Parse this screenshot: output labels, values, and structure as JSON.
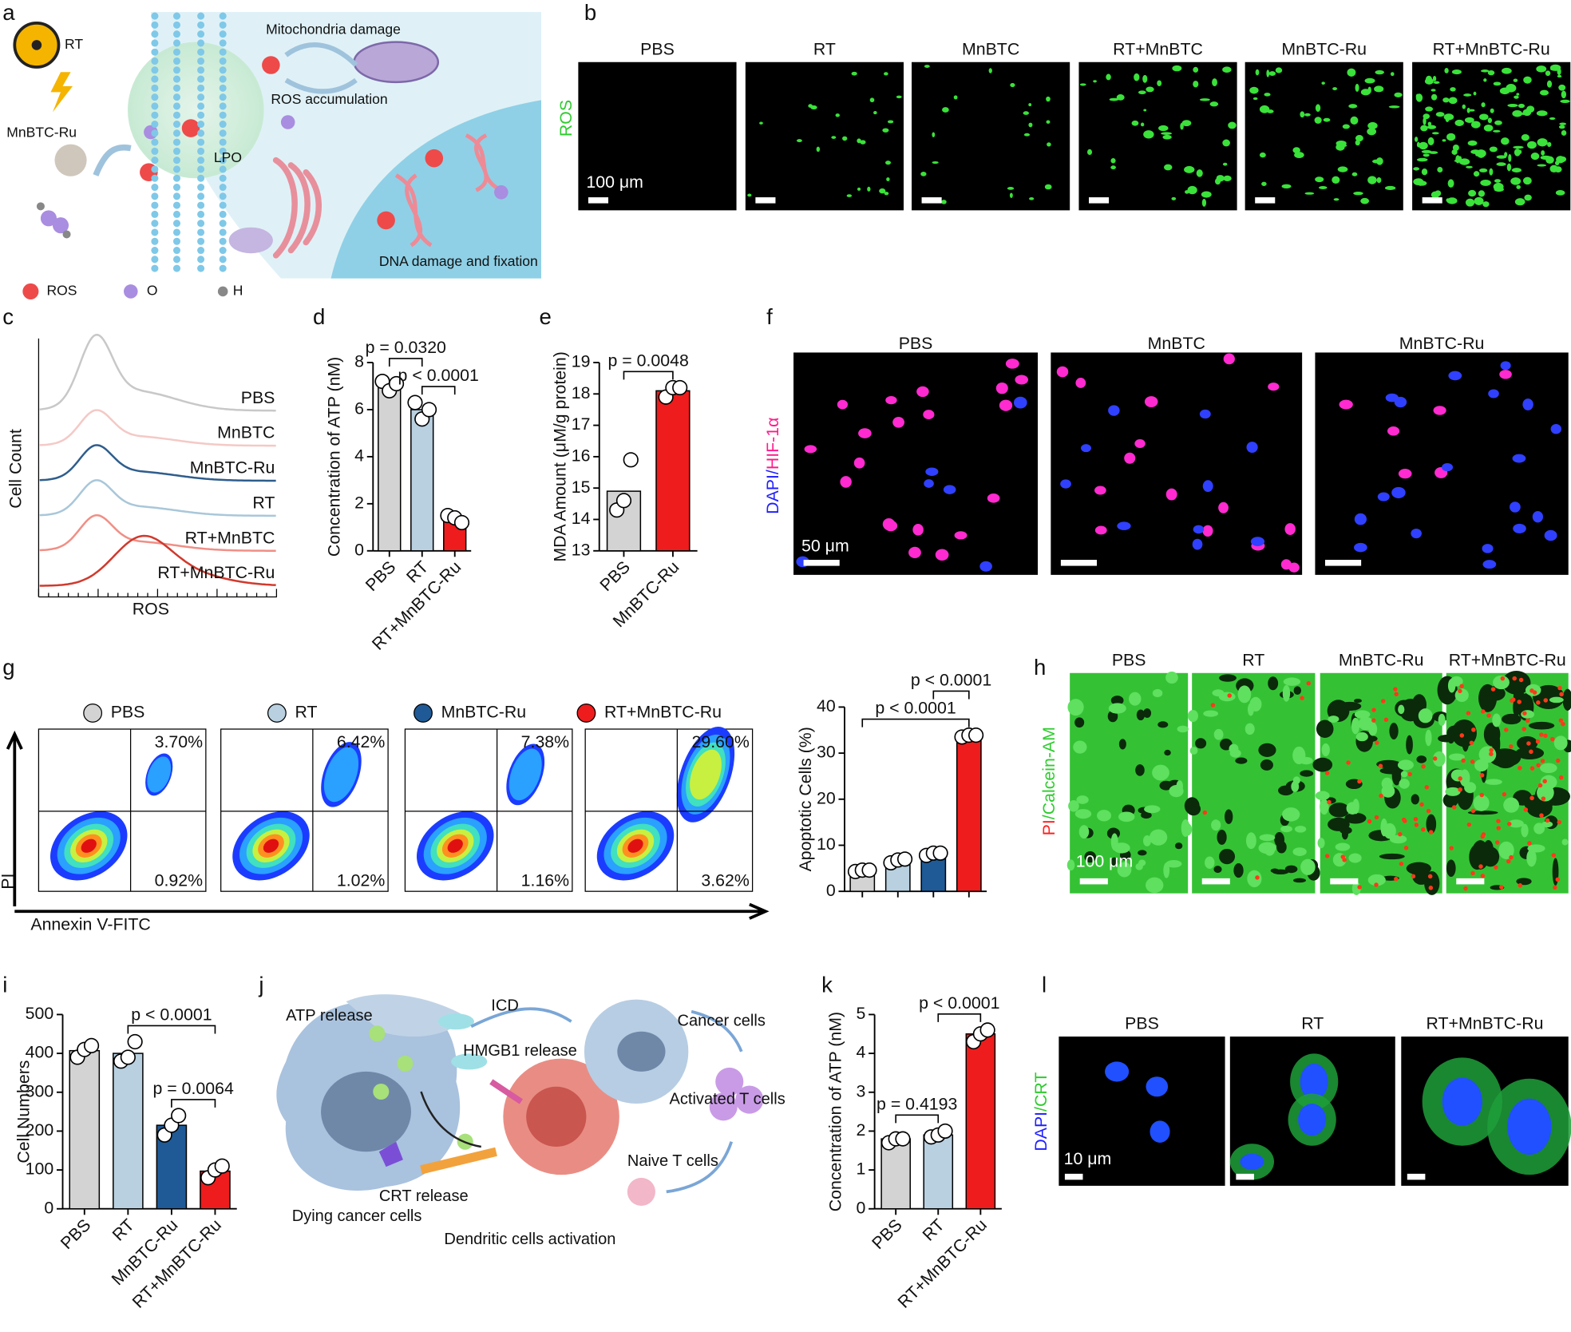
{
  "panel_labels": [
    "a",
    "b",
    "c",
    "d",
    "e",
    "f",
    "g",
    "h",
    "i",
    "j",
    "k",
    "l"
  ],
  "panel_a": {
    "labels": [
      "RT",
      "MnBTC-Ru",
      "Mitochondria damage",
      "ROS accumulation",
      "LPO",
      "DNA damage and fixation"
    ],
    "legend": [
      "ROS",
      "O",
      "H"
    ]
  },
  "panel_b": {
    "stain": "ROS",
    "groups": [
      "PBS",
      "RT",
      "MnBTC",
      "RT+MnBTC",
      "MnBTC-Ru",
      "RT+MnBTC-Ru"
    ],
    "scale_bar": "100 μm"
  },
  "panel_c": {
    "y_label": "Cell Count",
    "x_label": "ROS",
    "traces": [
      {
        "name": "PBS",
        "color": "#c8c8c8"
      },
      {
        "name": "MnBTC",
        "color": "#f4c9c6"
      },
      {
        "name": "MnBTC-Ru",
        "color": "#2f5d8c"
      },
      {
        "name": "RT",
        "color": "#a9c7d9"
      },
      {
        "name": "RT+MnBTC",
        "color": "#f08f86"
      },
      {
        "name": "RT+MnBTC-Ru",
        "color": "#d03a2e"
      }
    ]
  },
  "panel_f": {
    "stain_parts": [
      "DAPI",
      "/",
      "HIF-1α"
    ],
    "groups": [
      "PBS",
      "MnBTC",
      "MnBTC-Ru"
    ],
    "scale_bar": "50 μm"
  },
  "panel_g": {
    "groups": [
      {
        "name": "PBS",
        "color": "#d3d3d3"
      },
      {
        "name": "RT",
        "color": "#b8d0e0"
      },
      {
        "name": "MnBTC-Ru",
        "color": "#1f5a96"
      },
      {
        "name": "RT+MnBTC-Ru",
        "color": "#ee1c1c"
      }
    ],
    "y_label": "PI",
    "x_label": "Annexin V-FITC",
    "quadrants": [
      [
        "3.70%",
        "0.92%"
      ],
      [
        "6.42%",
        "1.02%"
      ],
      [
        "7.38%",
        "1.16%"
      ],
      [
        "29.60%",
        "3.62%"
      ]
    ]
  },
  "panel_h": {
    "stain_parts": [
      "PI",
      "/",
      "Calcein-AM"
    ],
    "groups": [
      "PBS",
      "RT",
      "MnBTC-Ru",
      "RT+MnBTC-Ru"
    ],
    "scale_bar": "100 μm"
  },
  "panel_j": {
    "labels": [
      "ATP release",
      "ICD",
      "Cancer cells",
      "HMGB1 release",
      "Activated T cells",
      "Naive T cells",
      "CRT release",
      "Dying cancer cells",
      "Dendritic cells activation"
    ]
  },
  "panel_l": {
    "stain_parts": [
      "DAPI",
      "/",
      "CRT"
    ],
    "groups": [
      "PBS",
      "RT",
      "RT+MnBTC-Ru"
    ],
    "scale_bar": "10 μm"
  },
  "chart_data": [
    {
      "type": "bar",
      "y_label": "Concentration of ATP (nM)",
      "categories": [
        "PBS",
        "RT",
        "RT+MnBTC-Ru"
      ],
      "values": [
        7.0,
        6.0,
        1.4
      ],
      "colors": [
        "#d3d3d3",
        "#b8d0e0",
        "#ee1c1c"
      ],
      "points": [
        [
          7.2,
          6.8,
          7.1
        ],
        [
          6.3,
          5.6,
          6.0
        ],
        [
          1.5,
          1.4,
          1.2
        ]
      ],
      "ylim": [
        0,
        8
      ],
      "yticks": [
        0,
        2,
        4,
        6,
        8
      ],
      "comparisons": [
        {
          "between": [
            0,
            1
          ],
          "label": "p = 0.0320"
        },
        {
          "between": [
            1,
            2
          ],
          "label": "p < 0.0001"
        }
      ]
    },
    {
      "type": "bar",
      "y_label": "MDA Amount (μM/g protein)",
      "categories": [
        "PBS",
        "MnBTC-Ru"
      ],
      "values": [
        14.9,
        18.1
      ],
      "colors": [
        "#d3d3d3",
        "#ee1c1c"
      ],
      "points": [
        [
          14.3,
          14.6,
          15.9
        ],
        [
          17.9,
          18.2,
          18.2
        ]
      ],
      "ylim": [
        13,
        19
      ],
      "yticks": [
        13,
        14,
        15,
        16,
        17,
        18,
        19
      ],
      "comparisons": [
        {
          "between": [
            0,
            1
          ],
          "label": "p = 0.0048"
        }
      ]
    },
    {
      "type": "bar",
      "y_label": "Apoptotic Cells (%)",
      "categories": [
        null,
        null,
        null,
        null
      ],
      "values": [
        4.5,
        6.7,
        8.1,
        33.8
      ],
      "colors": [
        "#d3d3d3",
        "#b8d0e0",
        "#1f5a96",
        "#ee1c1c"
      ],
      "points": [
        [
          4.3,
          4.6,
          4.6
        ],
        [
          6.2,
          6.8,
          7.0
        ],
        [
          7.8,
          8.3,
          8.3
        ],
        [
          33.5,
          33.9,
          33.9
        ]
      ],
      "ylim": [
        0,
        40
      ],
      "yticks": [
        0,
        10,
        20,
        30,
        40
      ],
      "comparisons": [
        {
          "between": [
            0,
            3
          ],
          "label": "p < 0.0001"
        },
        {
          "between": [
            2,
            3
          ],
          "label": "p < 0.0001"
        }
      ]
    },
    {
      "type": "bar",
      "y_label": "Cell Numbers",
      "categories": [
        "PBS",
        "RT",
        "MnBTC-Ru",
        "RT+MnBTC-Ru"
      ],
      "values": [
        407,
        400,
        215,
        97
      ],
      "colors": [
        "#d3d3d3",
        "#b8d0e0",
        "#1f5a96",
        "#ee1c1c"
      ],
      "points": [
        [
          390,
          410,
          420
        ],
        [
          380,
          390,
          430
        ],
        [
          190,
          215,
          240
        ],
        [
          80,
          100,
          110
        ]
      ],
      "ylim": [
        0,
        500
      ],
      "yticks": [
        0,
        100,
        200,
        300,
        400,
        500
      ],
      "comparisons": [
        {
          "between": [
            1,
            3
          ],
          "label": "p < 0.0001"
        },
        {
          "between": [
            2,
            3
          ],
          "label": "p = 0.0064"
        }
      ]
    },
    {
      "type": "bar",
      "y_label": "Concentration of ATP (nM)",
      "categories": [
        "PBS",
        "RT",
        "RT+MnBTC-Ru"
      ],
      "values": [
        1.8,
        1.9,
        4.5
      ],
      "colors": [
        "#d3d3d3",
        "#b8d0e0",
        "#ee1c1c"
      ],
      "points": [
        [
          1.7,
          1.8,
          1.8
        ],
        [
          1.85,
          1.9,
          2.0
        ],
        [
          4.3,
          4.5,
          4.6
        ]
      ],
      "ylim": [
        0,
        5
      ],
      "yticks": [
        0,
        1,
        2,
        3,
        4,
        5
      ],
      "comparisons": [
        {
          "between": [
            0,
            1
          ],
          "label": "p = 0.4193"
        },
        {
          "between": [
            1,
            2
          ],
          "label": "p < 0.0001"
        }
      ]
    }
  ]
}
